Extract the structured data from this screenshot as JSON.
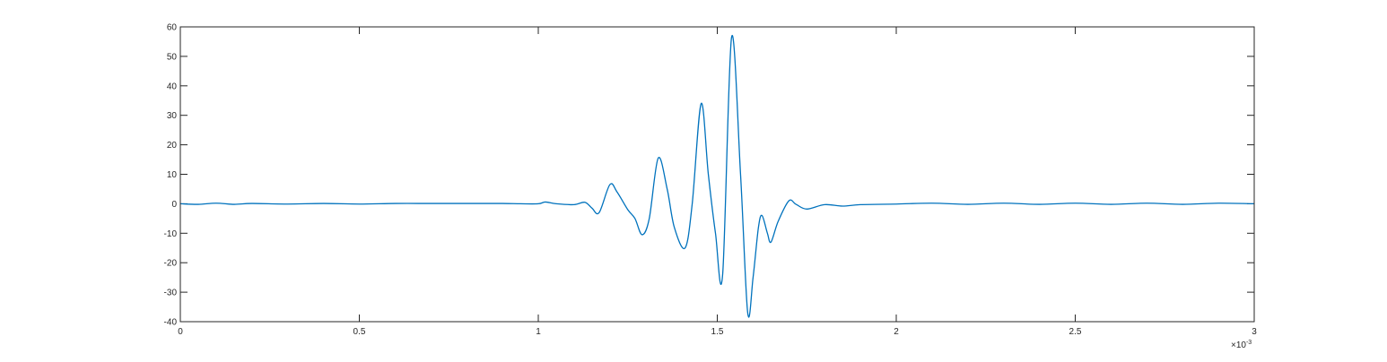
{
  "chart_data": {
    "type": "line",
    "title": "",
    "xlabel": "",
    "ylabel": "",
    "xlim": [
      0,
      3
    ],
    "ylim": [
      -40,
      60
    ],
    "x_exponent_label": {
      "base": "×10",
      "power": "-3"
    },
    "grid": false,
    "box": true,
    "xticks": [
      0,
      0.5,
      1,
      1.5,
      2,
      2.5,
      3
    ],
    "xtick_labels": [
      "0",
      "0.5",
      "1",
      "1.5",
      "2",
      "2.5",
      "3"
    ],
    "yticks": [
      -40,
      -30,
      -20,
      -10,
      0,
      10,
      20,
      30,
      40,
      50,
      60
    ],
    "ytick_labels": [
      "-40",
      "-30",
      "-20",
      "-10",
      "0",
      "10",
      "20",
      "30",
      "40",
      "50",
      "60"
    ],
    "line_color": "#0072BD",
    "series": [
      {
        "x": [
          0,
          0.05,
          0.1,
          0.15,
          0.2,
          0.3,
          0.4,
          0.5,
          0.6,
          0.7,
          0.8,
          0.9,
          0.95,
          1.0,
          1.02,
          1.05,
          1.1,
          1.13,
          1.15,
          1.17,
          1.2,
          1.22,
          1.25,
          1.27,
          1.29,
          1.31,
          1.335,
          1.36,
          1.38,
          1.41,
          1.43,
          1.455,
          1.475,
          1.495,
          1.515,
          1.54,
          1.565,
          1.585,
          1.6,
          1.615,
          1.625,
          1.64,
          1.65,
          1.67,
          1.7,
          1.72,
          1.75,
          1.8,
          1.85,
          1.9,
          2.0,
          2.1,
          2.2,
          2.3,
          2.4,
          2.5,
          2.6,
          2.7,
          2.8,
          2.9,
          3.0
        ],
        "y": [
          0,
          -0.2,
          0.2,
          -0.2,
          0.1,
          -0.1,
          0.1,
          -0.1,
          0.1,
          0.1,
          0.1,
          0.1,
          0.0,
          0.0,
          0.6,
          0.0,
          -0.3,
          0.5,
          -1.5,
          -3.0,
          6.5,
          4.0,
          -2.0,
          -5.0,
          -10.5,
          -5.0,
          15.5,
          5.0,
          -8.0,
          -15.0,
          0.0,
          34.0,
          10.0,
          -10.0,
          -24.0,
          56.5,
          10.0,
          -37.0,
          -25.0,
          -8.0,
          -4.0,
          -10.0,
          -13.0,
          -6.0,
          1.0,
          -0.2,
          -1.8,
          -0.3,
          -0.8,
          -0.3,
          -0.1,
          0.2,
          -0.2,
          0.2,
          -0.2,
          0.2,
          -0.2,
          0.2,
          -0.2,
          0.2,
          0.0
        ]
      }
    ]
  }
}
